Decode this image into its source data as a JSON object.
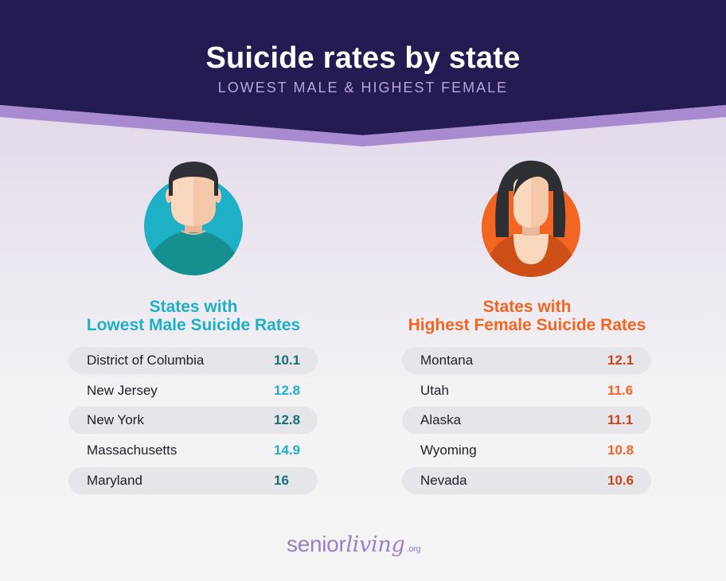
{
  "header": {
    "title": "Suicide rates by state",
    "subtitle": "LOWEST MALE & HIGHEST FEMALE",
    "background_color": "#241b52",
    "band_color": "#a98ad1"
  },
  "male": {
    "heading_line1": "States with",
    "heading_line2": "Lowest Male Suicide Rates",
    "accent_color": "#1eb0c6",
    "avatar_icon": "man-avatar-icon",
    "rows": [
      {
        "state": "District of Columbia",
        "rate": "10.1"
      },
      {
        "state": "New Jersey",
        "rate": "12.8"
      },
      {
        "state": "New York",
        "rate": "12.8"
      },
      {
        "state": "Massachusetts",
        "rate": "14.9"
      },
      {
        "state": "Maryland",
        "rate": "16"
      }
    ]
  },
  "female": {
    "heading_line1": "States with",
    "heading_line2": "Highest Female Suicide Rates",
    "accent_color": "#f26522",
    "avatar_icon": "woman-avatar-icon",
    "rows": [
      {
        "state": "Montana",
        "rate": "12.1"
      },
      {
        "state": "Utah",
        "rate": "11.6"
      },
      {
        "state": "Alaska",
        "rate": "11.1"
      },
      {
        "state": "Wyoming",
        "rate": "10.8"
      },
      {
        "state": "Nevada",
        "rate": "10.6"
      }
    ]
  },
  "logo": {
    "part1": "senior",
    "part2": "living",
    "part3": ".org",
    "color": "#9b80c8"
  }
}
